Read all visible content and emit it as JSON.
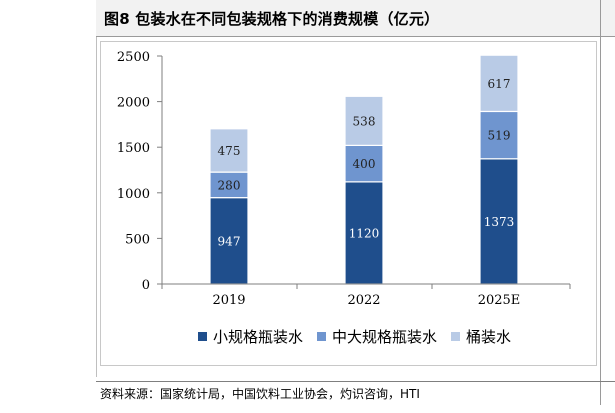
{
  "header": {
    "title": "图8  包装水在不同包装规格下的消费规模（亿元）"
  },
  "footer": {
    "source": "资料来源：国家统计局，中国饮料工业协会，灼识咨询，HTI"
  },
  "colors": {
    "small": "#1f4e8c",
    "medium": "#6f95cf",
    "barrel": "#b9cbe6",
    "axis": "#7f7f7f"
  },
  "chart_data": {
    "type": "bar",
    "stacked": true,
    "categories": [
      "2019",
      "2022",
      "2025E"
    ],
    "series": [
      {
        "name": "小规格瓶装水",
        "values": [
          947,
          1120,
          1373
        ]
      },
      {
        "name": "中大规格瓶装水",
        "values": [
          280,
          400,
          519
        ]
      },
      {
        "name": "桶装水",
        "values": [
          475,
          538,
          617
        ]
      }
    ],
    "ylim": [
      0,
      2500
    ],
    "yticks": [
      0,
      500,
      1000,
      1500,
      2000,
      2500
    ],
    "grid": false,
    "legend_position": "bottom"
  }
}
